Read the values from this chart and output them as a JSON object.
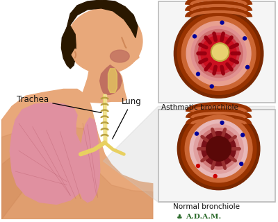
{
  "bg_color": "#ffffff",
  "label_trachea": "Trachea",
  "label_lung": "Lung",
  "label_asthmatic": "Asthmatic bronchiole",
  "label_normal": "Normal bronchiole",
  "adam_text": "A.D.A.M.",
  "skin_color": "#e8a87a",
  "skin_shadow": "#d08858",
  "skin_dark": "#c07050",
  "lung_color": "#e090a0",
  "lung_mid": "#d07880",
  "lung_dark": "#b05060",
  "trachea_yellow": "#e8d060",
  "trachea_ring": "#b8a040",
  "throat_pink": "#c07060",
  "box_bg": "#f0f0f0",
  "box_border": "#bbbbbb",
  "tube_brown_outer": "#7a2800",
  "tube_brown": "#993300",
  "tube_copper": "#cc6633",
  "tube_pink_wall": "#e8a090",
  "tube_pink_mid": "#e8b8b8",
  "asth_red": "#cc1020",
  "asth_dark": "#990010",
  "mucus_yellow": "#e8d070",
  "normal_dark_lumen": "#7a1018",
  "normal_wall_red": "#cc3030",
  "dot_blue": "#000099",
  "dot_red": "#cc0000",
  "text_color": "#111111",
  "adam_green": "#2a6a2a",
  "gray_fan": "#c8c8c8",
  "hair_color": "#2a1800",
  "head_shadow": "#c88050"
}
